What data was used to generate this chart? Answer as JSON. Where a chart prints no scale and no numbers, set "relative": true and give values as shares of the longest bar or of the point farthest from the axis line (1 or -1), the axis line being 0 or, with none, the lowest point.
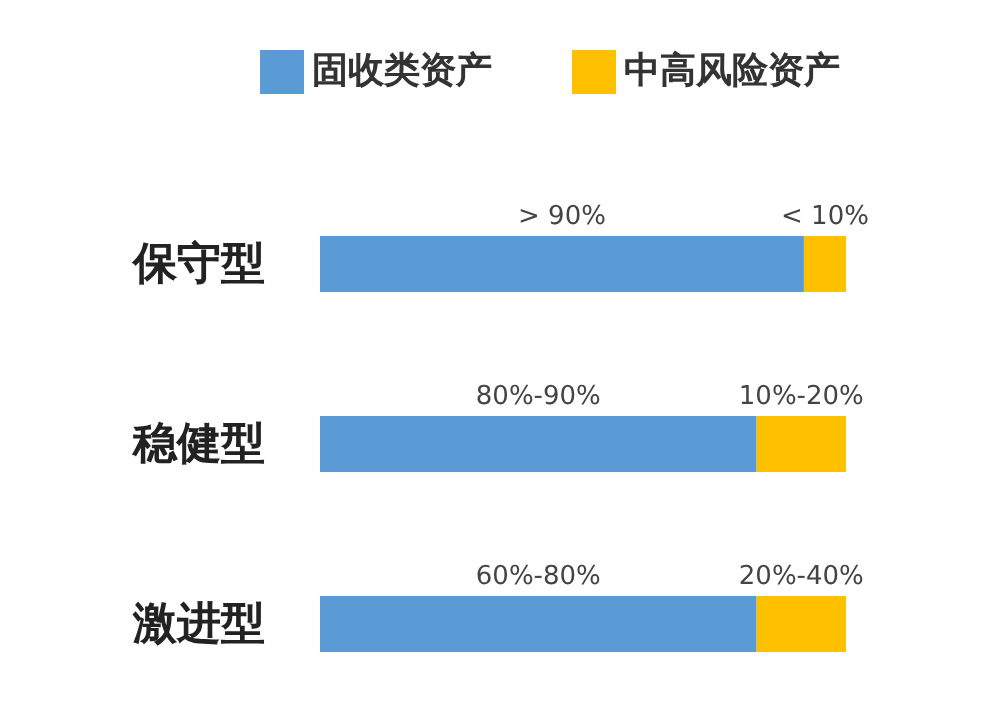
{
  "chart_data": {
    "type": "bar",
    "orientation": "horizontal",
    "stacked": true,
    "relative": true,
    "legend": "top",
    "categories": [
      "保守型",
      "稳健型",
      "激进型"
    ],
    "series": [
      {
        "name": "固收类资产",
        "color": "#5b9bd5",
        "values": [
          0.92,
          0.83,
          0.83
        ]
      },
      {
        "name": "中高风险资产",
        "color": "#ffc000",
        "values": [
          0.08,
          0.17,
          0.17
        ]
      }
    ],
    "annotations": [
      "> 90%",
      "< 10%",
      "80%-90%",
      "10%-20%",
      "60%-80%",
      "20%-40%"
    ]
  }
}
